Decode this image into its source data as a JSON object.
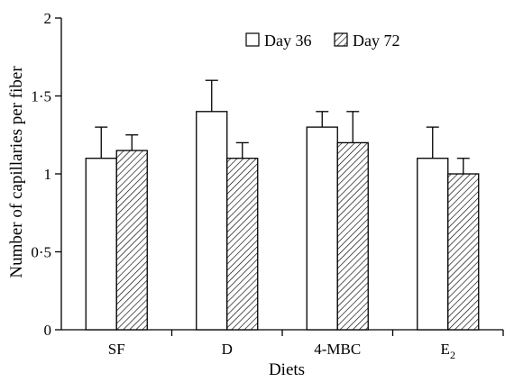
{
  "chart_data": {
    "type": "bar",
    "title": "",
    "xlabel": "Diets",
    "ylabel": "Number of capillaries per fiber",
    "ylim": [
      0,
      2
    ],
    "yticks": [
      {
        "value": 0,
        "label": "0"
      },
      {
        "value": 0.5,
        "label": "0·5"
      },
      {
        "value": 1,
        "label": "1"
      },
      {
        "value": 1.5,
        "label": "1·5"
      },
      {
        "value": 2,
        "label": "2"
      }
    ],
    "categories": [
      {
        "label": "SF",
        "sub": ""
      },
      {
        "label": "D",
        "sub": ""
      },
      {
        "label": "4-MBC",
        "sub": ""
      },
      {
        "label": "E",
        "sub": "2"
      }
    ],
    "series": [
      {
        "name": "Day 36",
        "fill": "#ffffff",
        "pattern": "none",
        "values": [
          1.1,
          1.4,
          1.3,
          1.1
        ],
        "errors": [
          0.2,
          0.2,
          0.1,
          0.2
        ]
      },
      {
        "name": "Day 72",
        "fill": "#ffffff",
        "pattern": "diagonal-hatch",
        "values": [
          1.15,
          1.1,
          1.2,
          1.0
        ],
        "errors": [
          0.1,
          0.1,
          0.2,
          0.1
        ]
      }
    ],
    "legend": "top-right",
    "grid": false,
    "error_bars": "upper"
  }
}
